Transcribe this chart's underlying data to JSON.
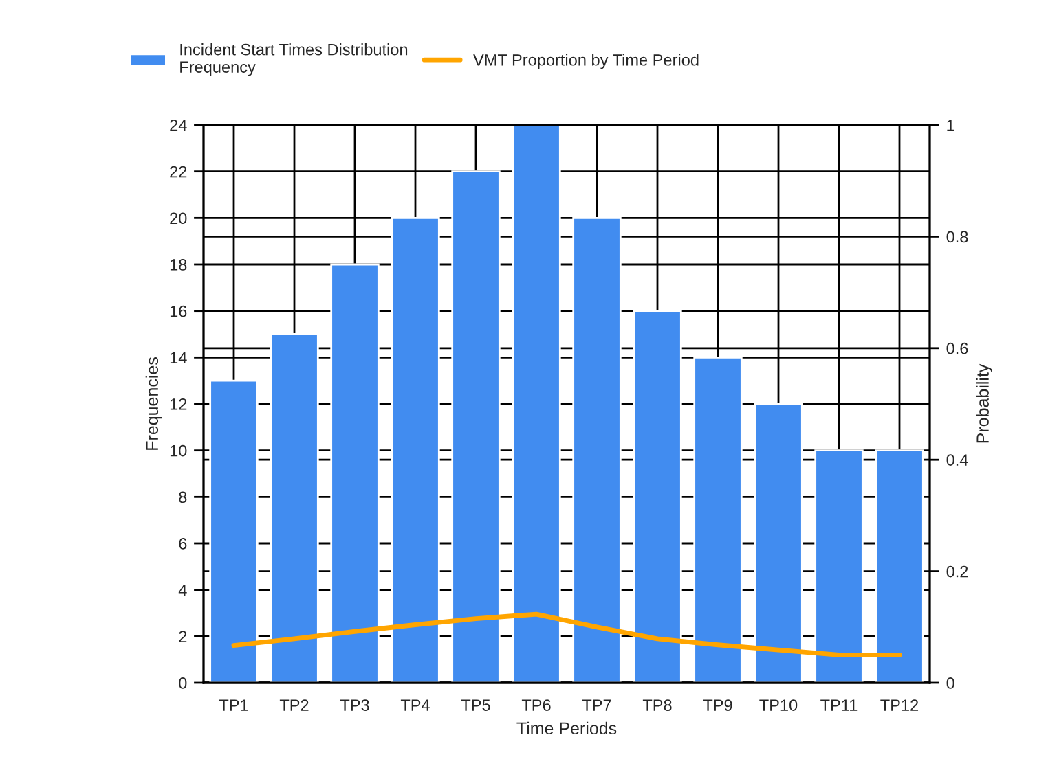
{
  "chart_data": {
    "type": "bar",
    "xlabel": "Time Periods",
    "ylabel": "Frequencies",
    "y2label": "Probability",
    "categories": [
      "TP1",
      "TP2",
      "TP3",
      "TP4",
      "TP5",
      "TP6",
      "TP7",
      "TP8",
      "TP9",
      "TP10",
      "TP11",
      "TP12"
    ],
    "series": [
      {
        "name": "Incident Start Times Distribution\nFrequency",
        "color": "#418cf0",
        "values": [
          13,
          15,
          18,
          20,
          22,
          24,
          20,
          16,
          14,
          12,
          10,
          10
        ]
      },
      {
        "name": "VMT Proportion by Time Period",
        "type": "line",
        "axis": "y2",
        "color": "#ffa500",
        "values": [
          0.067,
          0.079,
          0.092,
          0.104,
          0.115,
          0.123,
          0.1,
          0.079,
          0.068,
          0.059,
          0.05,
          0.05
        ]
      }
    ],
    "ylim": [
      0,
      24
    ],
    "yticks": [
      0,
      2,
      4,
      6,
      8,
      10,
      12,
      14,
      16,
      18,
      20,
      22,
      24
    ],
    "y2lim": [
      0,
      1
    ],
    "y2ticks": [
      0,
      0.2,
      0.4,
      0.6,
      0.8,
      1
    ],
    "grid": true,
    "legend": "top left",
    "marker": "none",
    "line_style": "solid"
  }
}
